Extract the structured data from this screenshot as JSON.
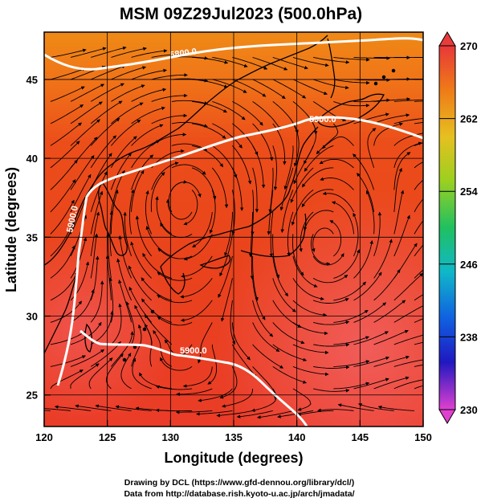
{
  "title": "MSM 09Z29Jul2023 (500.0hPa)",
  "xlabel": "Longitude (degrees)",
  "ylabel": "Latitude  (degrees)",
  "x_ticks": [
    "120",
    "125",
    "130",
    "135",
    "140",
    "145",
    "150"
  ],
  "y_ticks": [
    "25",
    "30",
    "35",
    "40",
    "45"
  ],
  "colorbar_ticks": [
    "270",
    "262",
    "254",
    "246",
    "238",
    "230"
  ],
  "contour_labels": [
    "5800.0",
    "5900.0",
    "5900.0",
    "5900.0"
  ],
  "credit_line_1": "Drawing by DCL (https://www.gfd-dennou.org/library/dcl/)",
  "credit_line_2": "Data from http://database.rish.kyoto-u.ac.jp/arch/jmadata/",
  "colors": {
    "field_warm": "#e8401e",
    "field_north": "#f07a16",
    "field_south": "#f05050",
    "contour": "#ffffff",
    "coast": "#000000",
    "colorbar_top": "#e83c3c",
    "colorbar_bottom": "#e040d0"
  },
  "chart_data": {
    "type": "map",
    "x_range": [
      120,
      150
    ],
    "y_range": [
      23,
      48
    ],
    "colorbar_range": [
      230,
      270
    ],
    "field": "temperature (K) shaded with wind streamlines",
    "contour_values": [
      5800.0,
      5900.0
    ],
    "contour_5900_path": [
      [
        120.5,
        23
      ],
      [
        121,
        27
      ],
      [
        122,
        33
      ],
      [
        122.5,
        38
      ],
      [
        124,
        39.5
      ],
      [
        128,
        40.5
      ],
      [
        132,
        41.5
      ],
      [
        135,
        42
      ],
      [
        140,
        42.3
      ],
      [
        143,
        42.8
      ],
      [
        147,
        42
      ],
      [
        150,
        41.5
      ]
    ],
    "contour_5900_south_path": [
      [
        122,
        30
      ],
      [
        123,
        28.7
      ],
      [
        126,
        28.6
      ],
      [
        128,
        28.5
      ],
      [
        130,
        28
      ],
      [
        133,
        27.8
      ],
      [
        135,
        27.5
      ],
      [
        137,
        26.8
      ],
      [
        138,
        25.5
      ],
      [
        139.5,
        24
      ],
      [
        140.5,
        23
      ]
    ],
    "contour_5800_path": [
      [
        120,
        47.5
      ],
      [
        123,
        46
      ],
      [
        126,
        46.2
      ],
      [
        130,
        46.5
      ],
      [
        135,
        47
      ],
      [
        138,
        47.5
      ],
      [
        142,
        47.8
      ],
      [
        146,
        47.5
      ],
      [
        150,
        47
      ]
    ],
    "cyclone_center": [
      142.2,
      34.5
    ],
    "anticyclone_center": [
      131,
      37.5
    ]
  }
}
